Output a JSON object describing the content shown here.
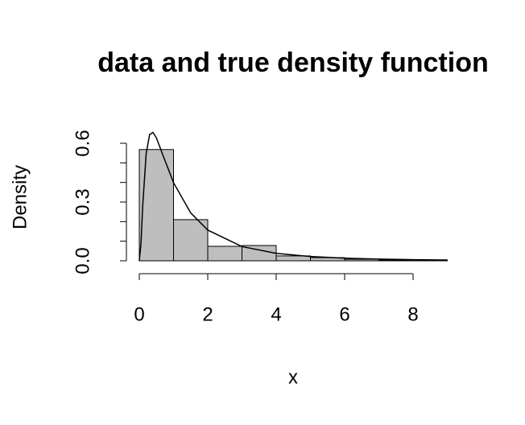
{
  "chart_data": {
    "type": "histogram",
    "title": "data and true density function",
    "xlabel": "x",
    "ylabel": "Density",
    "bins": [
      0,
      1,
      2,
      3,
      4,
      5,
      6,
      7,
      8,
      9
    ],
    "values": [
      0.568,
      0.21,
      0.074,
      0.078,
      0.025,
      0.016,
      0.008,
      0.004,
      0.004
    ],
    "color": "#bebebe",
    "curve": {
      "color": "#000000",
      "x": [
        0,
        0.05,
        0.1,
        0.2,
        0.3,
        0.4,
        0.5,
        0.7,
        1,
        1.5,
        2,
        3,
        4,
        5,
        6,
        7,
        8,
        9
      ],
      "y": [
        0,
        0.0898,
        0.2816,
        0.5464,
        0.6442,
        0.6555,
        0.6276,
        0.5348,
        0.3989,
        0.245,
        0.1569,
        0.0727,
        0.0381,
        0.0219,
        0.0134,
        0.00858,
        0.00574,
        0.00397
      ]
    },
    "xlim": [
      0,
      9
    ],
    "ylim": [
      0,
      0.6
    ],
    "xticks": [
      0,
      2,
      4,
      6,
      8
    ],
    "yticks": [
      {
        "value": 0,
        "label": "0.0"
      },
      {
        "value": 0.3,
        "label": "0.3"
      },
      {
        "value": 0.6,
        "label": "0.6"
      }
    ],
    "yminorticks": [
      0.1,
      0.2,
      0.4,
      0.5
    ]
  }
}
